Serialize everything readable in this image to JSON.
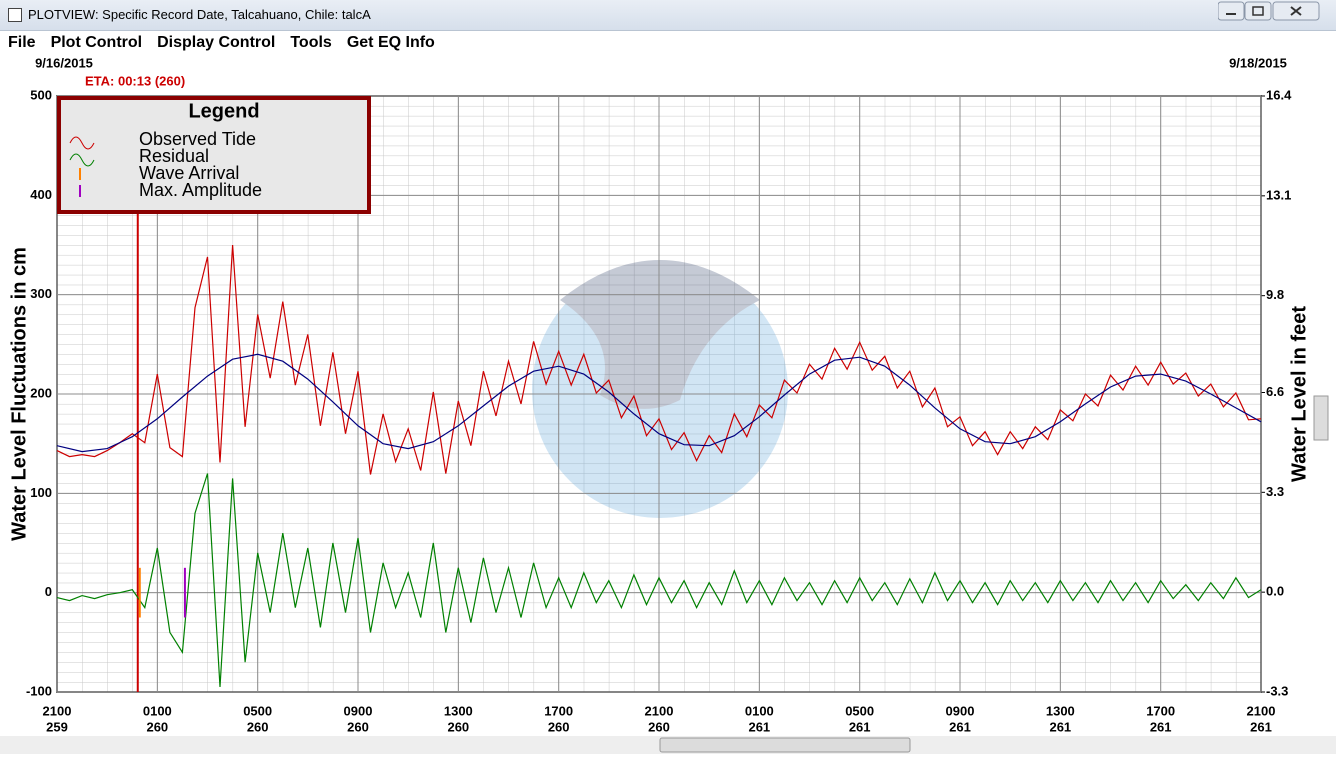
{
  "window": {
    "title": "PLOTVIEW: Specific Record Date, Talcahuano, Chile: talcA",
    "menu": [
      "File",
      "Plot Control",
      "Display Control",
      "Tools",
      "Get EQ Info"
    ]
  },
  "chart_data": {
    "type": "line",
    "start_date": "9/16/2015",
    "end_date": "9/18/2015",
    "ylabel": "Water Level Fluctuations in cm",
    "y2label": "Water Level in feet",
    "legend_title": "Legend",
    "legend": "upper left",
    "grid": true,
    "xlim": [
      0,
      48
    ],
    "xticks": [
      {
        "value": 0,
        "label": "2100"
      },
      {
        "value": 4,
        "label": "0100"
      },
      {
        "value": 8,
        "label": "0500"
      },
      {
        "value": 12,
        "label": "0900"
      },
      {
        "value": 16,
        "label": "1300"
      },
      {
        "value": 20,
        "label": "1700"
      },
      {
        "value": 24,
        "label": "2100"
      },
      {
        "value": 28,
        "label": "0100"
      },
      {
        "value": 32,
        "label": "0500"
      },
      {
        "value": 36,
        "label": "0900"
      },
      {
        "value": 40,
        "label": "1300"
      },
      {
        "value": 44,
        "label": "1700"
      },
      {
        "value": 48,
        "label": "2100"
      }
    ],
    "xtick_days": [
      "259",
      "260",
      "260",
      "260",
      "260",
      "260",
      "260",
      "261",
      "261",
      "261",
      "261",
      "261",
      "261"
    ],
    "ylim": [
      -100,
      500
    ],
    "yticks": [
      500,
      400,
      300,
      200,
      100,
      0,
      -100
    ],
    "y2lim": [
      -3.3,
      16.4
    ],
    "y2ticks": [
      16.4,
      13.1,
      9.8,
      6.6,
      3.3,
      {
        "value": 0,
        "label": "0.0"
      },
      -3.3
    ],
    "eta": {
      "label": "ETA: 00:13 (260)",
      "x": 3.22,
      "color": "#cc0000"
    },
    "markers": [
      {
        "name": "Wave Arrival",
        "color": "#ff8000",
        "x": 3.3,
        "values": [
          -25,
          25
        ]
      },
      {
        "name": "Max. Amplitude",
        "color": "#a000c0",
        "x": 5.1,
        "values": [
          -25,
          25
        ]
      }
    ],
    "series": [
      {
        "name": "Observed Tide",
        "color": "#cc0000",
        "x": [
          0,
          0.5,
          1,
          1.5,
          2,
          2.5,
          3,
          3.5,
          4,
          4.5,
          5,
          5.5,
          6,
          6.5,
          7,
          7.5,
          8,
          8.5,
          9,
          9.5,
          10,
          10.5,
          11,
          11.5,
          12,
          12.5,
          13,
          13.5,
          14,
          14.5,
          15,
          15.5,
          16,
          16.5,
          17,
          17.5,
          18,
          18.5,
          19,
          19.5,
          20,
          20.5,
          21,
          21.5,
          22,
          22.5,
          23,
          23.5,
          24,
          24.5,
          25,
          25.5,
          26,
          26.5,
          27,
          27.5,
          28,
          28.5,
          29,
          29.5,
          30,
          30.5,
          31,
          31.5,
          32,
          32.5,
          33,
          33.5,
          34,
          34.5,
          35,
          35.5,
          36,
          36.5,
          37,
          37.5,
          38,
          38.5,
          39,
          39.5,
          40,
          40.5,
          41,
          41.5,
          42,
          42.5,
          43,
          43.5,
          44,
          44.5,
          45,
          45.5,
          46,
          46.5,
          47,
          47.5,
          48
        ],
        "values": [
          143,
          137,
          139,
          137,
          143,
          151,
          160,
          151,
          220,
          146,
          137,
          287,
          338,
          131,
          350,
          167,
          280,
          216,
          293,
          209,
          260,
          168,
          242,
          160,
          223,
          119,
          180,
          132,
          165,
          123,
          202,
          120,
          193,
          148,
          223,
          178,
          233,
          190,
          253,
          210,
          243,
          209,
          240,
          201,
          214,
          176,
          198,
          158,
          175,
          144,
          161,
          133,
          158,
          141,
          180,
          157,
          189,
          176,
          214,
          201,
          230,
          215,
          246,
          225,
          252,
          224,
          238,
          206,
          223,
          187,
          206,
          167,
          177,
          148,
          162,
          139,
          162,
          145,
          167,
          154,
          184,
          173,
          200,
          188,
          219,
          204,
          228,
          209,
          232,
          210,
          221,
          198,
          210,
          187,
          201,
          174,
          175
        ]
      },
      {
        "name": "Residual",
        "color": "#008000",
        "x": [
          0,
          0.5,
          1,
          1.5,
          2,
          2.5,
          3,
          3.5,
          4,
          4.5,
          5,
          5.5,
          6,
          6.5,
          7,
          7.5,
          8,
          8.5,
          9,
          9.5,
          10,
          10.5,
          11,
          11.5,
          12,
          12.5,
          13,
          13.5,
          14,
          14.5,
          15,
          15.5,
          16,
          16.5,
          17,
          17.5,
          18,
          18.5,
          19,
          19.5,
          20,
          20.5,
          21,
          21.5,
          22,
          22.5,
          23,
          23.5,
          24,
          24.5,
          25,
          25.5,
          26,
          26.5,
          27,
          27.5,
          28,
          28.5,
          29,
          29.5,
          30,
          30.5,
          31,
          31.5,
          32,
          32.5,
          33,
          33.5,
          34,
          34.5,
          35,
          35.5,
          36,
          36.5,
          37,
          37.5,
          38,
          38.5,
          39,
          39.5,
          40,
          40.5,
          41,
          41.5,
          42,
          42.5,
          43,
          43.5,
          44,
          44.5,
          45,
          45.5,
          46,
          46.5,
          47,
          47.5,
          48
        ],
        "values": [
          -5,
          -8,
          -3,
          -6,
          -2,
          0,
          3,
          -15,
          45,
          -40,
          -60,
          80,
          120,
          -95,
          115,
          -70,
          40,
          -20,
          60,
          -15,
          45,
          -35,
          50,
          -20,
          55,
          -40,
          30,
          -15,
          20,
          -25,
          50,
          -40,
          25,
          -30,
          35,
          -20,
          25,
          -25,
          30,
          -15,
          15,
          -15,
          20,
          -10,
          12,
          -15,
          18,
          -12,
          15,
          -10,
          12,
          -15,
          10,
          -12,
          22,
          -10,
          12,
          -12,
          15,
          -8,
          10,
          -12,
          12,
          -10,
          15,
          -8,
          10,
          -12,
          14,
          -10,
          20,
          -8,
          12,
          -10,
          10,
          -12,
          12,
          -8,
          10,
          -10,
          12,
          -8,
          10,
          -10,
          12,
          -8,
          10,
          -10,
          12,
          -6,
          8,
          -8,
          10,
          -6,
          15,
          -5,
          3
        ]
      },
      {
        "color": "#000080",
        "x": [
          0,
          1,
          2,
          3,
          4,
          5,
          6,
          7,
          8,
          9,
          10,
          11,
          12,
          13,
          14,
          15,
          16,
          17,
          18,
          19,
          20,
          21,
          22,
          23,
          24,
          25,
          26,
          27,
          28,
          29,
          30,
          31,
          32,
          33,
          34,
          35,
          36,
          37,
          38,
          39,
          40,
          41,
          42,
          43,
          44,
          45,
          46,
          47,
          48
        ],
        "values": [
          148,
          142,
          145,
          157,
          175,
          197,
          218,
          235,
          240,
          233,
          215,
          192,
          168,
          150,
          145,
          152,
          168,
          188,
          208,
          223,
          228,
          220,
          202,
          180,
          160,
          149,
          148,
          158,
          177,
          199,
          220,
          234,
          237,
          228,
          209,
          186,
          165,
          152,
          150,
          157,
          172,
          190,
          207,
          218,
          220,
          213,
          200,
          186,
          172
        ]
      }
    ]
  }
}
